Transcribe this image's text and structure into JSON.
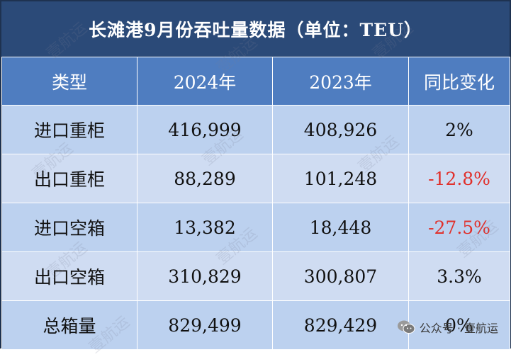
{
  "title": "长滩港9月份吞吐量数据（单位：TEU）",
  "table": {
    "headers": [
      "类型",
      "2024年",
      "2023年",
      "同比变化"
    ],
    "rows": [
      {
        "type": "进口重柜",
        "y2024": "416,999",
        "y2023": "408,926",
        "change": "2%",
        "negative": false
      },
      {
        "type": "出口重柜",
        "y2024": "88,289",
        "y2023": "101,248",
        "change": "-12.8%",
        "negative": true
      },
      {
        "type": "进口空箱",
        "y2024": "13,382",
        "y2023": "18,448",
        "change": "-27.5%",
        "negative": true
      },
      {
        "type": "出口空箱",
        "y2024": "310,829",
        "y2023": "300,807",
        "change": "3.3%",
        "negative": false
      },
      {
        "type": "总箱量",
        "y2024": "829,499",
        "y2023": "829,429",
        "change": "0%",
        "negative": false
      }
    ]
  },
  "watermark": {
    "text": "壹航运"
  },
  "footer": {
    "account_label": "公众号 · 壹航运"
  },
  "colors": {
    "title_bg": "#2b4a78",
    "header_bg": "#4f7dc0",
    "row_dark": "#bcd1ef",
    "row_light": "#cfdcf2",
    "negative": "#e0302b"
  }
}
